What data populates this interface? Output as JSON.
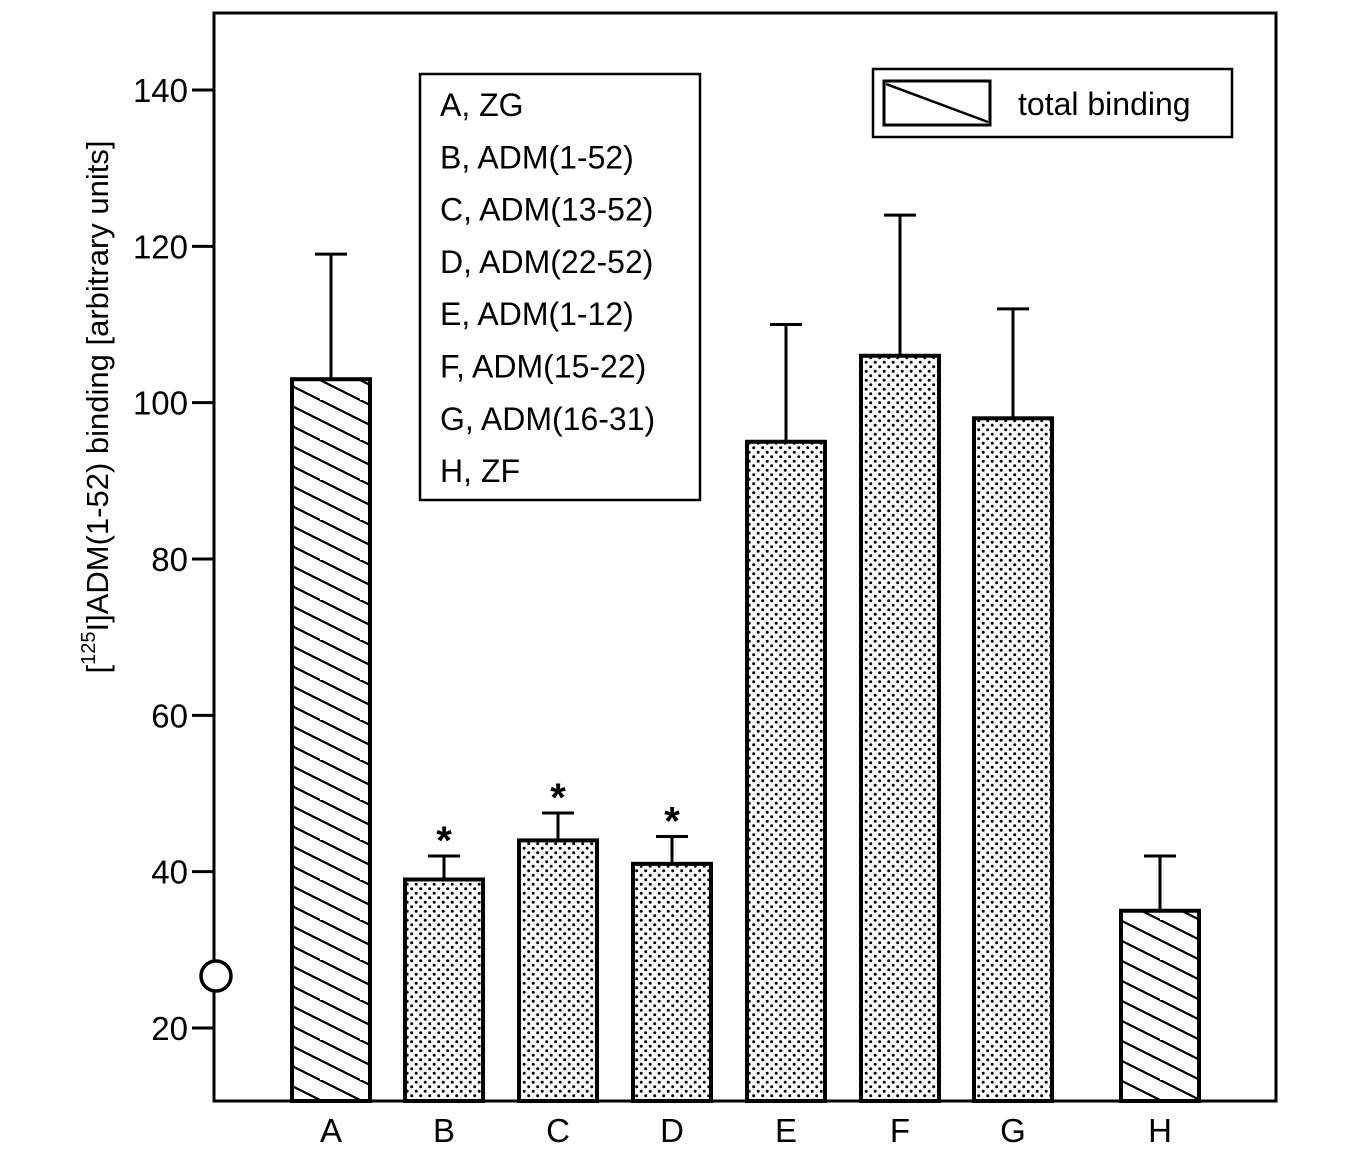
{
  "chart_data": {
    "type": "bar",
    "ylabel": {
      "open_bracket": "[",
      "superscript": "125",
      "rest": "I]ADM(1-52) binding [arbitrary units]"
    },
    "yticks": [
      20,
      40,
      60,
      80,
      100,
      120,
      140
    ],
    "categories": [
      "A",
      "B",
      "C",
      "D",
      "E",
      "F",
      "G",
      "H"
    ],
    "values": [
      103,
      39,
      44,
      41,
      95,
      106,
      98,
      35
    ],
    "errors": [
      16,
      3,
      3.5,
      3.5,
      15,
      18,
      14,
      7
    ],
    "patterns": [
      "hatch",
      "dots",
      "dots",
      "dots",
      "dots",
      "dots",
      "dots",
      "hatch"
    ],
    "significant": [
      false,
      true,
      true,
      true,
      false,
      false,
      false,
      false
    ],
    "significance_marker": "*",
    "legend_items": [
      "A, ZG",
      "B, ADM(1-52)",
      "C, ADM(13-52)",
      "D, ADM(22-52)",
      "E, ADM(1-12)",
      "F, ADM(15-22)",
      "G, ADM(16-31)",
      "H, ZF"
    ],
    "pattern_legend": "total binding",
    "ylim": [
      10,
      150
    ]
  }
}
